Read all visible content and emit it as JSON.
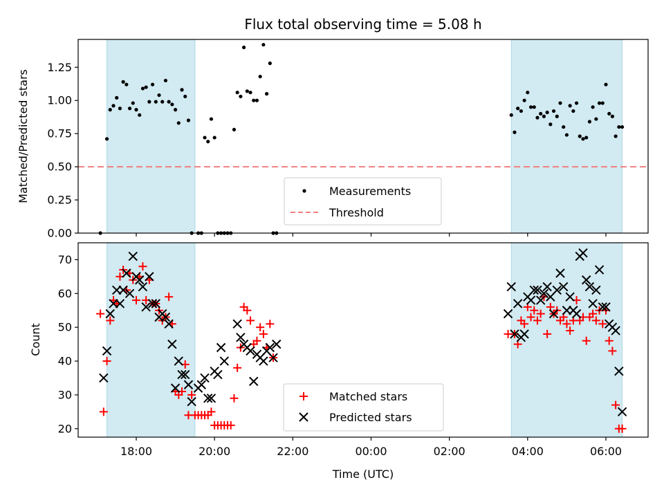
{
  "chart_data": [
    {
      "type": "scatter",
      "title": "Flux total observing time = 5.08 h",
      "xlabel": "",
      "ylabel": "Matched/Predicted stars",
      "ylim": [
        0,
        1.46
      ],
      "yticks": [
        "0.00",
        "0.25",
        "0.50",
        "0.75",
        "1.00",
        "1.25"
      ],
      "shaded_intervals": [
        [
          "17:15",
          "19:30"
        ],
        [
          "03:35",
          "06:25"
        ]
      ],
      "threshold": 0.5,
      "legend": {
        "placement": "lower-center",
        "entries": [
          "Measurements",
          "Threshold"
        ]
      },
      "colors": {
        "measurements": "#000000",
        "threshold": "#f08080",
        "shade": "#add8e6"
      },
      "series": [
        {
          "name": "Measurements",
          "x": [
            "17:05",
            "17:15",
            "17:20",
            "17:25",
            "17:30",
            "17:35",
            "17:40",
            "17:45",
            "17:50",
            "17:55",
            "18:00",
            "18:05",
            "18:10",
            "18:15",
            "18:20",
            "18:25",
            "18:30",
            "18:35",
            "18:40",
            "18:45",
            "18:50",
            "18:55",
            "19:00",
            "19:05",
            "19:10",
            "19:15",
            "19:20",
            "19:25",
            "19:35",
            "19:40",
            "19:45",
            "19:50",
            "19:55",
            "20:00",
            "20:05",
            "20:10",
            "20:15",
            "20:20",
            "20:25",
            "20:30",
            "20:35",
            "20:40",
            "20:45",
            "20:50",
            "20:55",
            "21:00",
            "21:05",
            "21:10",
            "21:15",
            "21:20",
            "21:25",
            "21:30",
            "21:35",
            "03:35",
            "03:40",
            "03:45",
            "03:50",
            "03:55",
            "04:00",
            "04:05",
            "04:10",
            "04:15",
            "04:20",
            "04:25",
            "04:30",
            "04:35",
            "04:40",
            "04:45",
            "04:50",
            "04:55",
            "05:00",
            "05:05",
            "05:10",
            "05:15",
            "05:20",
            "05:25",
            "05:30",
            "05:35",
            "05:40",
            "05:45",
            "05:50",
            "05:55",
            "06:00",
            "06:05",
            "06:10",
            "06:15",
            "06:20",
            "06:25"
          ],
          "y": [
            0.0,
            0.71,
            0.93,
            0.96,
            1.02,
            0.94,
            1.14,
            1.12,
            0.94,
            0.98,
            0.93,
            0.89,
            1.09,
            1.1,
            0.99,
            1.12,
            0.99,
            1.04,
            0.99,
            1.15,
            0.99,
            0.97,
            0.93,
            0.83,
            1.08,
            1.03,
            0.85,
            0.0,
            0.0,
            0.0,
            0.72,
            0.69,
            0.86,
            0.72,
            0.0,
            0.0,
            0.0,
            0.0,
            0.0,
            0.78,
            1.06,
            1.03,
            1.4,
            1.07,
            1.06,
            1.0,
            1.0,
            1.18,
            1.42,
            1.05,
            1.28,
            0.0,
            0.0,
            0.89,
            0.76,
            0.94,
            0.92,
            1.0,
            1.06,
            0.95,
            0.95,
            0.87,
            0.9,
            0.88,
            0.91,
            0.82,
            0.92,
            0.88,
            0.98,
            0.8,
            0.74,
            0.96,
            0.92,
            0.98,
            0.73,
            0.71,
            0.72,
            0.84,
            0.95,
            0.86,
            0.98,
            0.98,
            1.12,
            0.9,
            0.88,
            0.73,
            0.8,
            0.8
          ]
        }
      ]
    },
    {
      "type": "scatter",
      "title": "",
      "xlabel": "Time (UTC)",
      "ylabel": "Count",
      "ylim": [
        17.5,
        75
      ],
      "yticks": [
        "20",
        "30",
        "40",
        "50",
        "60",
        "70"
      ],
      "xticks": [
        "18:00",
        "20:00",
        "22:00",
        "00:00",
        "02:00",
        "04:00",
        "06:00"
      ],
      "shaded_intervals": [
        [
          "17:15",
          "19:30"
        ],
        [
          "03:35",
          "06:25"
        ]
      ],
      "legend": {
        "placement": "lower-center",
        "entries": [
          "Matched stars",
          "Predicted stars"
        ]
      },
      "colors": {
        "matched": "#ff0000",
        "predicted": "#000000",
        "shade": "#add8e6"
      },
      "series": [
        {
          "name": "Matched stars",
          "x": [
            "17:05",
            "17:10",
            "17:15",
            "17:20",
            "17:25",
            "17:30",
            "17:35",
            "17:40",
            "17:45",
            "17:50",
            "17:55",
            "18:00",
            "18:05",
            "18:10",
            "18:15",
            "18:20",
            "18:25",
            "18:30",
            "18:35",
            "18:40",
            "18:45",
            "18:50",
            "18:55",
            "19:00",
            "19:05",
            "19:10",
            "19:15",
            "19:20",
            "19:25",
            "19:30",
            "19:35",
            "19:40",
            "19:45",
            "19:50",
            "19:55",
            "20:00",
            "20:05",
            "20:10",
            "20:15",
            "20:20",
            "20:25",
            "20:30",
            "20:35",
            "20:40",
            "20:45",
            "20:50",
            "20:55",
            "21:00",
            "21:05",
            "21:10",
            "21:15",
            "21:20",
            "21:25",
            "21:30",
            "03:30",
            "03:40",
            "03:45",
            "03:50",
            "03:55",
            "04:00",
            "04:05",
            "04:10",
            "04:15",
            "04:20",
            "04:25",
            "04:30",
            "04:35",
            "04:40",
            "04:45",
            "04:50",
            "04:55",
            "05:00",
            "05:05",
            "05:10",
            "05:15",
            "05:20",
            "05:25",
            "05:30",
            "05:35",
            "05:40",
            "05:45",
            "05:50",
            "05:55",
            "06:00",
            "06:05",
            "06:10",
            "06:15",
            "06:20",
            "06:25"
          ],
          "y": [
            54,
            25,
            40,
            52,
            58,
            57,
            65,
            67,
            61,
            66,
            64,
            58,
            65,
            68,
            58,
            64,
            57,
            57,
            55,
            52,
            53,
            59,
            51,
            31,
            30,
            31,
            39,
            24,
            30,
            24,
            24,
            24,
            24,
            24,
            25,
            21,
            21,
            21,
            21,
            21,
            21,
            29,
            38,
            44,
            56,
            55,
            52,
            45,
            46,
            50,
            48,
            44,
            51,
            41,
            48,
            48,
            45,
            52,
            51,
            56,
            53,
            55,
            52,
            54,
            59,
            48,
            56,
            54,
            55,
            52,
            53,
            51,
            49,
            52,
            58,
            52,
            53,
            46,
            53,
            54,
            52,
            55,
            51,
            55,
            46,
            43,
            27,
            20,
            20
          ]
        },
        {
          "name": "Predicted stars",
          "x": [
            "17:10",
            "17:15",
            "17:20",
            "17:25",
            "17:30",
            "17:35",
            "17:40",
            "17:45",
            "17:50",
            "17:55",
            "18:00",
            "18:05",
            "18:10",
            "18:15",
            "18:20",
            "18:25",
            "18:30",
            "18:35",
            "18:40",
            "18:45",
            "18:50",
            "18:55",
            "19:00",
            "19:05",
            "19:10",
            "19:15",
            "19:20",
            "19:25",
            "19:35",
            "19:40",
            "19:45",
            "19:50",
            "19:55",
            "20:00",
            "20:05",
            "20:10",
            "20:15",
            "20:35",
            "20:40",
            "20:45",
            "20:50",
            "20:55",
            "21:00",
            "21:05",
            "21:10",
            "21:15",
            "21:20",
            "21:25",
            "21:30",
            "21:35",
            "03:30",
            "03:35",
            "03:40",
            "03:45",
            "03:50",
            "03:55",
            "04:00",
            "04:05",
            "04:10",
            "04:15",
            "04:20",
            "04:25",
            "04:30",
            "04:35",
            "04:40",
            "04:45",
            "04:50",
            "04:55",
            "05:00",
            "05:05",
            "05:10",
            "05:15",
            "05:20",
            "05:25",
            "05:30",
            "05:35",
            "05:40",
            "05:45",
            "05:50",
            "05:55",
            "06:00",
            "06:05",
            "06:10",
            "06:15",
            "06:20",
            "06:25"
          ],
          "y": [
            35,
            43,
            54,
            57,
            61,
            57,
            61,
            66,
            60,
            71,
            65,
            64,
            62,
            56,
            65,
            57,
            57,
            53,
            54,
            53,
            51,
            45,
            32,
            40,
            36,
            36,
            33,
            28,
            32,
            33,
            35,
            29,
            29,
            37,
            36,
            44,
            40,
            51,
            47,
            45,
            44,
            43,
            34,
            42,
            41,
            40,
            43,
            44,
            41,
            45,
            54,
            62,
            48,
            57,
            47,
            48,
            59,
            58,
            61,
            61,
            58,
            60,
            62,
            59,
            54,
            61,
            66,
            62,
            55,
            59,
            55,
            54,
            71,
            72,
            64,
            62,
            57,
            61,
            67,
            56,
            56,
            51,
            50,
            49,
            37,
            25
          ]
        }
      ]
    }
  ]
}
